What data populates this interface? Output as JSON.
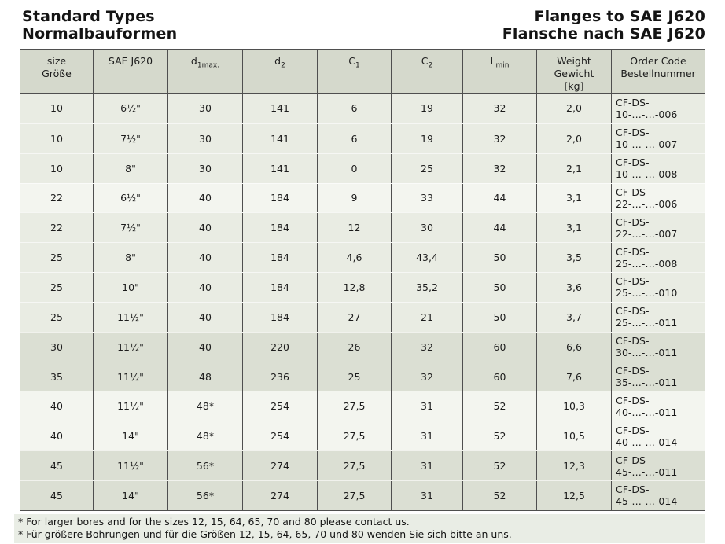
{
  "titles": {
    "left": [
      "Standard Types",
      "Normalbauformen"
    ],
    "right": [
      "Flanges to SAE J620",
      "Flansche nach SAE J620"
    ]
  },
  "table": {
    "columns": [
      {
        "id": "size",
        "lines": [
          {
            "text": "size"
          },
          {
            "text": "Größe"
          }
        ]
      },
      {
        "id": "sae",
        "lines": [
          {
            "text": "SAE J620"
          }
        ]
      },
      {
        "id": "d1max",
        "lines": [
          {
            "text": "d",
            "sub": "1max."
          }
        ]
      },
      {
        "id": "d2",
        "lines": [
          {
            "text": "d",
            "sub": "2"
          }
        ]
      },
      {
        "id": "c1",
        "lines": [
          {
            "text": "C",
            "sub": "1"
          }
        ]
      },
      {
        "id": "c2",
        "lines": [
          {
            "text": "C",
            "sub": "2"
          }
        ]
      },
      {
        "id": "lmin",
        "lines": [
          {
            "text": "L",
            "sub": "min"
          }
        ]
      },
      {
        "id": "weight",
        "lines": [
          {
            "text": "Weight"
          },
          {
            "text": "Gewicht"
          },
          {
            "text": "[kg]"
          }
        ]
      },
      {
        "id": "order",
        "lines": [
          {
            "text": "Order Code"
          },
          {
            "text": "Bestellnummer"
          }
        ]
      }
    ],
    "rows": [
      {
        "shade": "a",
        "cells": [
          "10",
          "6½\"",
          "30",
          "141",
          "6",
          "19",
          "32",
          "2,0",
          "CF-DS-10-…-…-006"
        ]
      },
      {
        "shade": "a",
        "cells": [
          "10",
          "7½\"",
          "30",
          "141",
          "6",
          "19",
          "32",
          "2,0",
          "CF-DS-10-…-…-007"
        ]
      },
      {
        "shade": "a",
        "cells": [
          "10",
          "8\"",
          "30",
          "141",
          "0",
          "25",
          "32",
          "2,1",
          "CF-DS-10-…-…-008"
        ]
      },
      {
        "shade": "b",
        "cells": [
          "22",
          "6½\"",
          "40",
          "184",
          "9",
          "33",
          "44",
          "3,1",
          "CF-DS-22-…-…-006"
        ]
      },
      {
        "shade": "a",
        "cells": [
          "22",
          "7½\"",
          "40",
          "184",
          "12",
          "30",
          "44",
          "3,1",
          "CF-DS-22-…-…-007"
        ]
      },
      {
        "shade": "a",
        "cells": [
          "25",
          "8\"",
          "40",
          "184",
          "4,6",
          "43,4",
          "50",
          "3,5",
          "CF-DS-25-…-…-008"
        ]
      },
      {
        "shade": "a",
        "cells": [
          "25",
          "10\"",
          "40",
          "184",
          "12,8",
          "35,2",
          "50",
          "3,6",
          "CF-DS-25-…-…-010"
        ]
      },
      {
        "shade": "a",
        "cells": [
          "25",
          "11½\"",
          "40",
          "184",
          "27",
          "21",
          "50",
          "3,7",
          "CF-DS-25-…-…-011"
        ]
      },
      {
        "shade": "c",
        "cells": [
          "30",
          "11½\"",
          "40",
          "220",
          "26",
          "32",
          "60",
          "6,6",
          "CF-DS-30-…-…-011"
        ]
      },
      {
        "shade": "c",
        "cells": [
          "35",
          "11½\"",
          "48",
          "236",
          "25",
          "32",
          "60",
          "7,6",
          "CF-DS-35-…-…-011"
        ]
      },
      {
        "shade": "b",
        "cells": [
          "40",
          "11½\"",
          "48*",
          "254",
          "27,5",
          "31",
          "52",
          "10,3",
          "CF-DS-40-…-…-011"
        ]
      },
      {
        "shade": "b",
        "cells": [
          "40",
          "14\"",
          "48*",
          "254",
          "27,5",
          "31",
          "52",
          "10,5",
          "CF-DS-40-…-…-014"
        ]
      },
      {
        "shade": "c",
        "cells": [
          "45",
          "11½\"",
          "56*",
          "274",
          "27,5",
          "31",
          "52",
          "12,3",
          "CF-DS-45-…-…-011"
        ]
      },
      {
        "shade": "c",
        "cells": [
          "45",
          "14\"",
          "56*",
          "274",
          "27,5",
          "31",
          "52",
          "12,5",
          "CF-DS-45-…-…-014"
        ]
      }
    ]
  },
  "footnotes": [
    "* For larger bores and for the sizes 12, 15, 64, 65, 70 and 80 please contact us.",
    "* Für größere Bohrungen und für die Größen 12, 15, 64, 65, 70 und 80 wenden Sie sich bitte an uns."
  ],
  "colors": {
    "header_bg": "#d5d9cc",
    "row_shades": {
      "a": "#e9ece3",
      "b": "#f3f5ef",
      "c": "#dbdfd3"
    },
    "border": "#4f4f4f",
    "footnote_bg": "#e9ede5"
  }
}
